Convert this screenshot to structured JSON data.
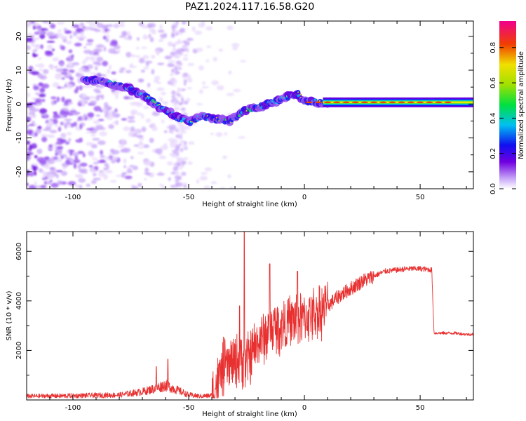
{
  "title": "PAZ1.2024.117.16.58.G20",
  "chart_data": [
    {
      "type": "heatmap",
      "xlabel": "Height of straight line (km)",
      "ylabel": "Frequency (Hz)",
      "xlim": [
        -120,
        73
      ],
      "ylim": [
        -25,
        24.5
      ],
      "x_ticks": [
        -100,
        -50,
        0,
        50
      ],
      "y_ticks": [
        -20,
        -10,
        0,
        10,
        20
      ],
      "ridge": {
        "x": [
          -88,
          -80,
          -74,
          -68,
          -62,
          -56,
          -50,
          -44,
          -38,
          -32,
          -26,
          -20,
          -14,
          -8,
          -3,
          0,
          5,
          12,
          20,
          30,
          45,
          60,
          73
        ],
        "y": [
          7,
          5.5,
          4,
          2,
          -1,
          -3.5,
          -5.5,
          -3.5,
          -4.5,
          -5,
          -2,
          -1,
          0.5,
          2,
          3,
          1,
          0.5,
          0.5,
          0.5,
          0.5,
          0.5,
          0.5,
          0.5
        ]
      },
      "colorbar": {
        "label": "Normalized spectral amplitude",
        "range": [
          0,
          0.95
        ],
        "ticks": [
          0.0,
          0.2,
          0.4,
          0.6,
          0.8
        ],
        "tick_labels": [
          "0.0",
          "0.2",
          "0.4",
          "0.6",
          "0.8"
        ]
      }
    },
    {
      "type": "line",
      "xlabel": "Height of straight line (km)",
      "ylabel": "SNR (10 * v/v)",
      "xlim": [
        -120,
        73
      ],
      "ylim": [
        0,
        6800
      ],
      "x_ticks": [
        -100,
        -50,
        0,
        50
      ],
      "y_ticks": [
        2000,
        4000,
        6000
      ],
      "color": "#e83030",
      "series": [
        {
          "x": [
            -120,
            -100,
            -80,
            -70,
            -65,
            -60,
            -55,
            -50,
            -45,
            -40,
            -35,
            -30,
            -27,
            -25,
            -20,
            -15,
            -10,
            -5,
            0,
            5,
            10,
            15,
            20,
            25,
            30,
            35,
            40,
            45,
            50,
            55,
            56,
            60,
            65,
            70,
            73
          ],
          "y": [
            150,
            170,
            200,
            330,
            450,
            600,
            400,
            200,
            150,
            180,
            1300,
            1500,
            1700,
            1500,
            2300,
            2800,
            3000,
            3200,
            3300,
            3500,
            3800,
            4200,
            4500,
            4800,
            5000,
            5200,
            5250,
            5300,
            5300,
            5250,
            2700,
            2700,
            2700,
            2650,
            2650
          ]
        }
      ],
      "spikes": [
        {
          "x": -26,
          "y": 6800
        },
        {
          "x": -28,
          "y": 3800
        },
        {
          "x": -15,
          "y": 5500
        },
        {
          "x": -3,
          "y": 5200
        },
        {
          "x": -59,
          "y": 1650
        },
        {
          "x": -64,
          "y": 1350
        }
      ]
    }
  ]
}
